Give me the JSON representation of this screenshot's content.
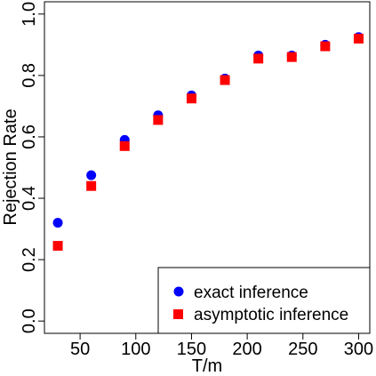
{
  "chart_data": {
    "type": "scatter",
    "xlabel": "T/m",
    "ylabel": "Rejection Rate",
    "xlim": [
      18,
      310
    ],
    "ylim": [
      -0.04,
      1.04
    ],
    "x_ticks": [
      50,
      100,
      150,
      200,
      250,
      300
    ],
    "x_tick_labels": [
      "50",
      "100",
      "150",
      "200",
      "250",
      "300"
    ],
    "y_ticks": [
      0.0,
      0.2,
      0.4,
      0.6,
      0.8,
      1.0
    ],
    "y_tick_labels": [
      "0.0",
      "0.2",
      "0.4",
      "0.6",
      "0.8",
      "1.0"
    ],
    "grid": false,
    "legend_position": "bottom-right",
    "x": [
      30,
      60,
      90,
      120,
      150,
      180,
      210,
      240,
      270,
      300
    ],
    "series": [
      {
        "name": "exact inference",
        "marker": "circle",
        "color": "#0000ff",
        "values": [
          0.32,
          0.475,
          0.59,
          0.67,
          0.735,
          0.79,
          0.865,
          0.865,
          0.9,
          0.925
        ]
      },
      {
        "name": "asymptotic inference",
        "marker": "square",
        "color": "#ff0000",
        "values": [
          0.245,
          0.44,
          0.57,
          0.655,
          0.725,
          0.785,
          0.855,
          0.86,
          0.895,
          0.92
        ]
      }
    ]
  }
}
